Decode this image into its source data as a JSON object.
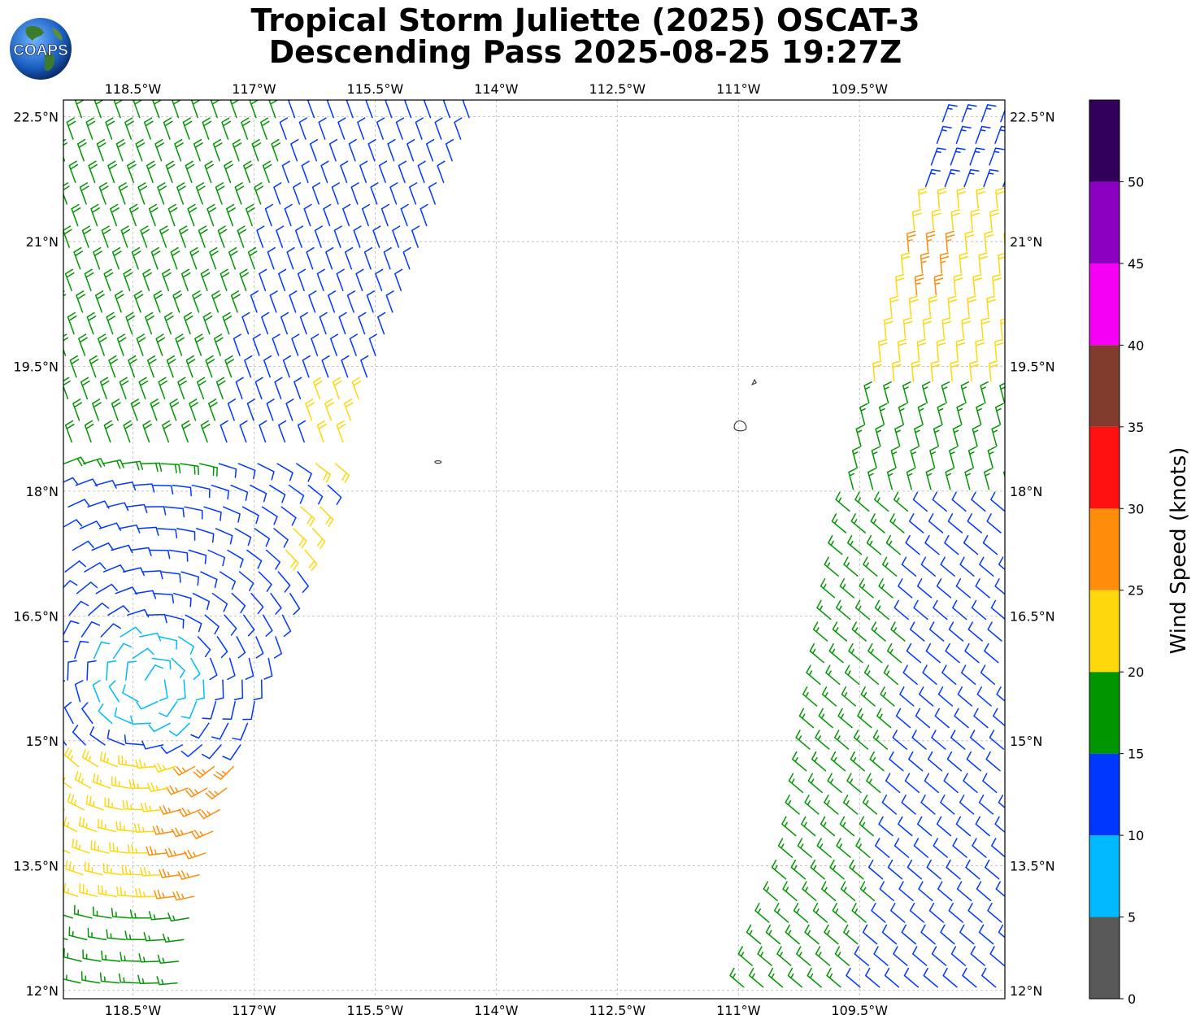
{
  "title": {
    "line1": "Tropical Storm Juliette (2025) OSCAT-3",
    "line2": "Descending Pass 2025-08-25 19:27Z"
  },
  "logo": {
    "text": "COAPS",
    "icon": "globe-logo-icon"
  },
  "map": {
    "lon_range": [
      -119.36,
      -107.7
    ],
    "lat_range": [
      11.9,
      22.7
    ],
    "lon_ticks": [
      {
        "value": -118.5,
        "label": "118.5°W"
      },
      {
        "value": -117.0,
        "label": "117°W"
      },
      {
        "value": -115.5,
        "label": "115.5°W"
      },
      {
        "value": -114.0,
        "label": "114°W"
      },
      {
        "value": -112.5,
        "label": "112.5°W"
      },
      {
        "value": -111.0,
        "label": "111°W"
      },
      {
        "value": -109.5,
        "label": "109.5°W"
      }
    ],
    "lat_ticks": [
      {
        "value": 22.5,
        "label": "22.5°N"
      },
      {
        "value": 21.0,
        "label": "21°N"
      },
      {
        "value": 19.5,
        "label": "19.5°N"
      },
      {
        "value": 18.0,
        "label": "18°N"
      },
      {
        "value": 16.5,
        "label": "16.5°N"
      },
      {
        "value": 15.0,
        "label": "15°N"
      },
      {
        "value": 13.5,
        "label": "13.5°N"
      },
      {
        "value": 12.0,
        "label": "12°N"
      }
    ],
    "gridlines": true,
    "islands": [
      {
        "name": "Socorro",
        "lon": -110.98,
        "lat": 18.78
      },
      {
        "name": "San Benedicto",
        "lon": -110.81,
        "lat": 19.31
      },
      {
        "name": "Clarion",
        "lon": -114.72,
        "lat": 18.35
      }
    ]
  },
  "colorbar": {
    "label": "Wind Speed (knots)",
    "bins": [
      {
        "min": 0,
        "max": 5,
        "color": "#595959"
      },
      {
        "min": 5,
        "max": 10,
        "color": "#00b9ff"
      },
      {
        "min": 10,
        "max": 15,
        "color": "#0037ff"
      },
      {
        "min": 15,
        "max": 20,
        "color": "#009600"
      },
      {
        "min": 20,
        "max": 25,
        "color": "#ffd70a"
      },
      {
        "min": 25,
        "max": 30,
        "color": "#ff8c0a"
      },
      {
        "min": 30,
        "max": 35,
        "color": "#ff0f0f"
      },
      {
        "min": 35,
        "max": 40,
        "color": "#823c2d"
      },
      {
        "min": 40,
        "max": 45,
        "color": "#f500f5"
      },
      {
        "min": 45,
        "max": 50,
        "color": "#8c00bf"
      },
      {
        "min": 50,
        "max": 55,
        "color": "#30005a"
      }
    ],
    "ticks": [
      "0",
      "5",
      "10",
      "15",
      "20",
      "25",
      "30",
      "35",
      "40",
      "45",
      "50"
    ]
  },
  "chart_data": {
    "type": "wind-barb-swaths",
    "units": "knots",
    "swaths": [
      {
        "name": "west",
        "edges_lon_at_lat": [
          {
            "lat": 22.7,
            "west": -119.36,
            "east": -114.2
          },
          {
            "lat": 19.0,
            "west": -119.36,
            "east": -115.7
          },
          {
            "lat": 16.5,
            "west": -119.36,
            "east": -116.6
          },
          {
            "lat": 13.5,
            "west": -119.36,
            "east": -117.6
          },
          {
            "lat": 12.3,
            "west": -119.36,
            "east": -117.9
          }
        ],
        "speed_regions": [
          {
            "area": "north-west",
            "speed_kt": 18
          },
          {
            "area": "north-east",
            "speed_kt": 12
          },
          {
            "area": "center",
            "speed_kt": 12
          },
          {
            "area": "eye (~118.3W 15.7N)",
            "speed_kt": 8
          },
          {
            "area": "east-edge 18.7N",
            "speed_kt": 22
          },
          {
            "area": "south 14.3-13.0N",
            "speed_kt": 23
          },
          {
            "area": "south-east 14.5N",
            "speed_kt": 27
          },
          {
            "area": "far south",
            "speed_kt": 17
          }
        ]
      },
      {
        "name": "east",
        "edges_lon_at_lat": [
          {
            "lat": 22.7,
            "west": -108.45,
            "east": -107.7
          },
          {
            "lat": 19.0,
            "west": -109.45,
            "east": -107.7
          },
          {
            "lat": 16.5,
            "west": -109.9,
            "east": -107.7
          },
          {
            "lat": 13.5,
            "west": -110.4,
            "east": -107.7
          },
          {
            "lat": 12.0,
            "west": -111.0,
            "east": -107.7
          }
        ],
        "speed_regions": [
          {
            "area": "north",
            "speed_kt": 13
          },
          {
            "area": "north-central 21-19.5N",
            "speed_kt": 22
          },
          {
            "area": "near 20.5N 108.6W",
            "speed_kt": 27
          },
          {
            "area": "central 19.5-18N",
            "speed_kt": 17
          },
          {
            "area": "south-west",
            "speed_kt": 17
          },
          {
            "area": "south-east",
            "speed_kt": 12
          }
        ]
      }
    ]
  }
}
